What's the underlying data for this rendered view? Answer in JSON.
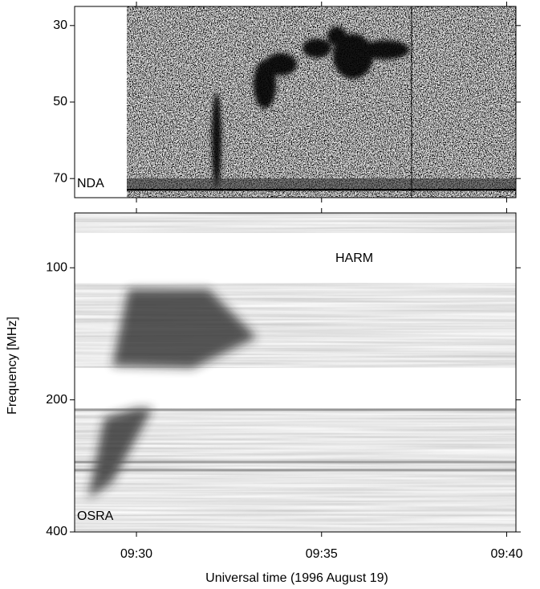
{
  "chart_data": [
    {
      "type": "spectrogram",
      "label": "NDA",
      "ylim": [
        25,
        75
      ],
      "yticks": [
        30,
        50,
        70
      ]
    },
    {
      "type": "spectrogram",
      "label": "OSRA",
      "annotation": "HARM",
      "ylabel": "Frequency [MHz]",
      "xlabel": "Universal time (1996 August 19)",
      "ylim": [
        75,
        400
      ],
      "yticks": [
        100,
        200,
        400
      ],
      "log_y": true,
      "xlim": [
        568.33,
        580.25
      ],
      "xticks": [
        {
          "value": 570,
          "label": "09:30"
        },
        {
          "value": 575,
          "label": "09:35"
        },
        {
          "value": 580,
          "label": "09:40"
        }
      ]
    }
  ]
}
